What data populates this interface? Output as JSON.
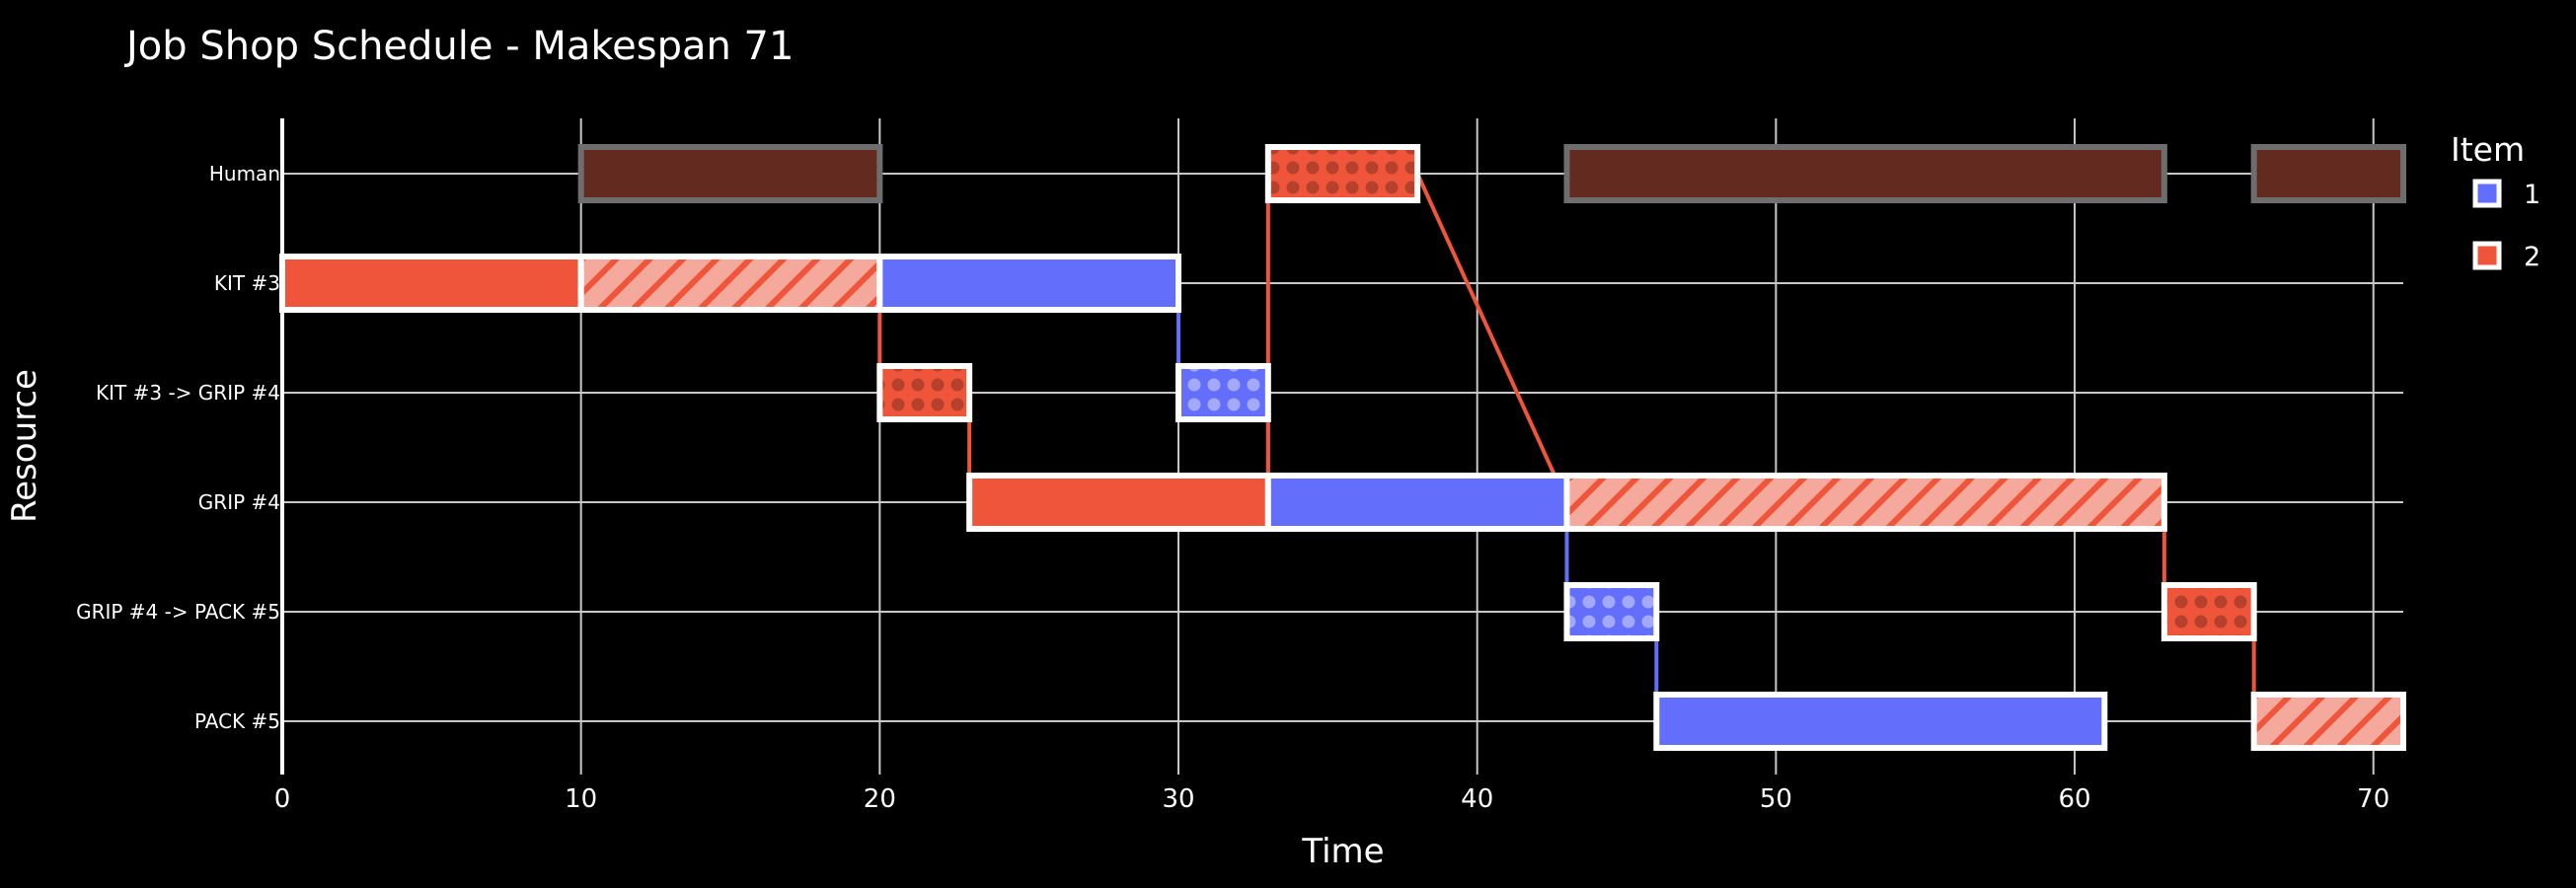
{
  "chart_data": {
    "type": "gantt",
    "title": "Job Shop Schedule - Makespan 71",
    "xlabel": "Time",
    "ylabel": "Resource",
    "xlim": [
      0,
      71
    ],
    "x_ticks": [
      0,
      10,
      20,
      30,
      40,
      50,
      60,
      70
    ],
    "grid": true,
    "resources": [
      "Human",
      "KIT #3",
      "KIT #3 -> GRIP #4",
      "GRIP #4",
      "GRIP #4 -> PACK #5",
      "PACK #5"
    ],
    "legend": {
      "title": "Item",
      "placement": "right",
      "items": [
        {
          "name": "1",
          "color": "#636efa"
        },
        {
          "name": "2",
          "color": "#ef553b"
        }
      ]
    },
    "tasks": [
      {
        "resource": "Human",
        "item": "2",
        "start": 10,
        "end": 20,
        "style": "human-wait"
      },
      {
        "resource": "Human",
        "item": "2",
        "start": 33,
        "end": 38,
        "style": "transport"
      },
      {
        "resource": "Human",
        "item": "2",
        "start": 43,
        "end": 63,
        "style": "human-wait"
      },
      {
        "resource": "Human",
        "item": "2",
        "start": 66,
        "end": 71,
        "style": "human-wait"
      },
      {
        "resource": "KIT #3",
        "item": "2",
        "start": 0,
        "end": 10,
        "style": "process"
      },
      {
        "resource": "KIT #3",
        "item": "2",
        "start": 10,
        "end": 20,
        "style": "wait"
      },
      {
        "resource": "KIT #3",
        "item": "1",
        "start": 20,
        "end": 30,
        "style": "process"
      },
      {
        "resource": "KIT #3 -> GRIP #4",
        "item": "2",
        "start": 20,
        "end": 23,
        "style": "transport"
      },
      {
        "resource": "KIT #3 -> GRIP #4",
        "item": "1",
        "start": 30,
        "end": 33,
        "style": "transport"
      },
      {
        "resource": "GRIP #4",
        "item": "2",
        "start": 23,
        "end": 33,
        "style": "process"
      },
      {
        "resource": "GRIP #4",
        "item": "1",
        "start": 33,
        "end": 43,
        "style": "process"
      },
      {
        "resource": "GRIP #4",
        "item": "2",
        "start": 43,
        "end": 63,
        "style": "wait"
      },
      {
        "resource": "GRIP #4 -> PACK #5",
        "item": "1",
        "start": 43,
        "end": 46,
        "style": "transport"
      },
      {
        "resource": "GRIP #4 -> PACK #5",
        "item": "2",
        "start": 63,
        "end": 66,
        "style": "transport"
      },
      {
        "resource": "PACK #5",
        "item": "1",
        "start": 46,
        "end": 61,
        "style": "process"
      },
      {
        "resource": "PACK #5",
        "item": "2",
        "start": 66,
        "end": 71,
        "style": "wait"
      }
    ],
    "flows": [
      {
        "item": "2",
        "path": [
          [
            "KIT #3",
            20
          ],
          [
            "KIT #3 -> GRIP #4",
            20
          ]
        ]
      },
      {
        "item": "2",
        "path": [
          [
            "KIT #3 -> GRIP #4",
            23
          ],
          [
            "GRIP #4",
            23
          ]
        ]
      },
      {
        "item": "1",
        "path": [
          [
            "KIT #3",
            30
          ],
          [
            "KIT #3 -> GRIP #4",
            30
          ]
        ]
      },
      {
        "item": "1",
        "path": [
          [
            "KIT #3 -> GRIP #4",
            33
          ],
          [
            "GRIP #4",
            33
          ]
        ]
      },
      {
        "item": "2",
        "path": [
          [
            "GRIP #4",
            33
          ],
          [
            "Human",
            33
          ]
        ]
      },
      {
        "item": "2",
        "path": [
          [
            "Human",
            38
          ],
          [
            "GRIP #4",
            43
          ]
        ]
      },
      {
        "item": "1",
        "path": [
          [
            "GRIP #4",
            43
          ],
          [
            "GRIP #4 -> PACK #5",
            43
          ]
        ]
      },
      {
        "item": "1",
        "path": [
          [
            "GRIP #4 -> PACK #5",
            46
          ],
          [
            "PACK #5",
            46
          ]
        ]
      },
      {
        "item": "2",
        "path": [
          [
            "GRIP #4",
            63
          ],
          [
            "GRIP #4 -> PACK #5",
            63
          ]
        ]
      },
      {
        "item": "2",
        "path": [
          [
            "GRIP #4 -> PACK #5",
            66
          ],
          [
            "PACK #5",
            66
          ]
        ]
      }
    ]
  }
}
